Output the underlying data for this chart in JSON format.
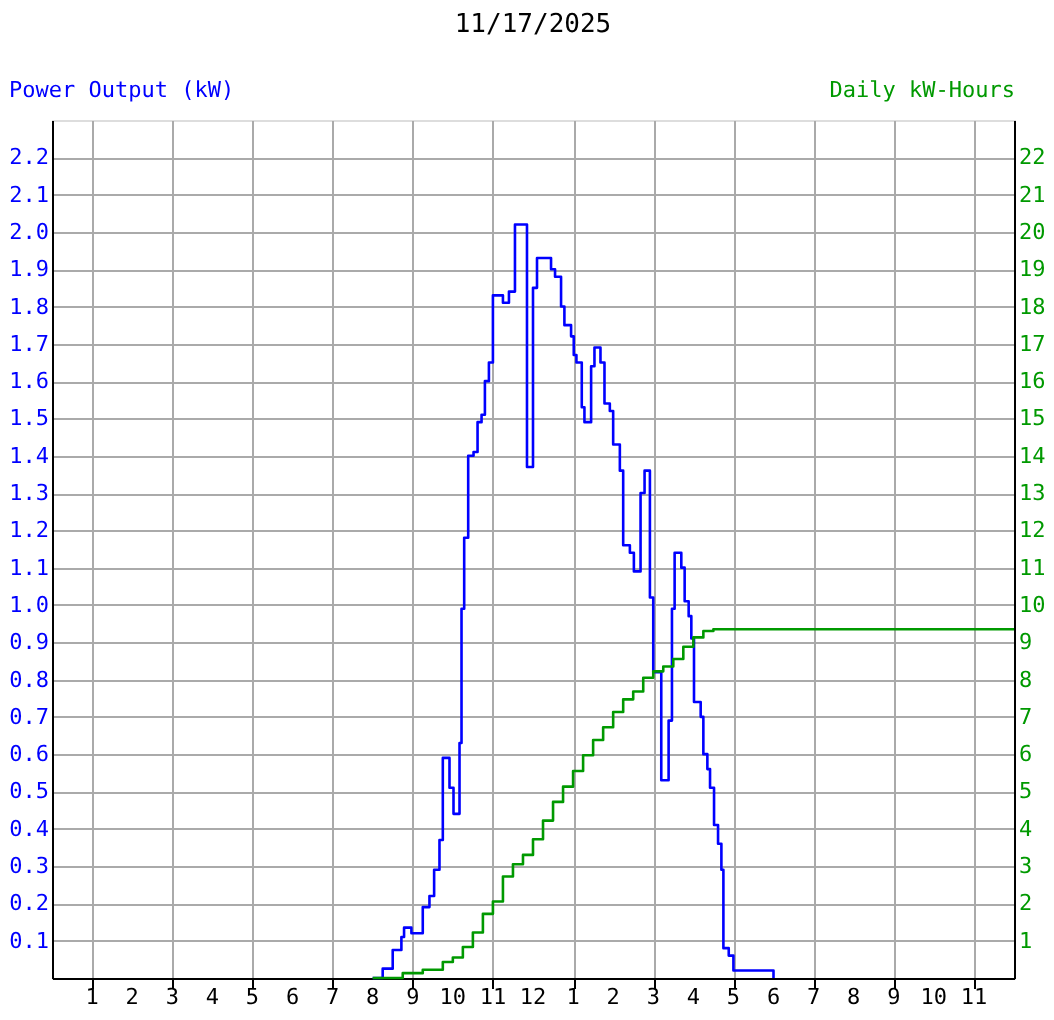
{
  "chart_data": {
    "type": "step",
    "title": "11/17/2025",
    "ylabel": "Power Output (kW)",
    "y2label": "Daily kW-Hours",
    "xlim": [
      "2025-11-17T00:00",
      "2025-11-18T00:00"
    ],
    "xticks": [
      {
        "value": "2025-11-17T01:00",
        "label": "1"
      },
      {
        "value": "2025-11-17T02:00",
        "label": "2"
      },
      {
        "value": "2025-11-17T03:00",
        "label": "3"
      },
      {
        "value": "2025-11-17T04:00",
        "label": "4"
      },
      {
        "value": "2025-11-17T05:00",
        "label": "5"
      },
      {
        "value": "2025-11-17T06:00",
        "label": "6"
      },
      {
        "value": "2025-11-17T07:00",
        "label": "7"
      },
      {
        "value": "2025-11-17T08:00",
        "label": "8"
      },
      {
        "value": "2025-11-17T09:00",
        "label": "9"
      },
      {
        "value": "2025-11-17T10:00",
        "label": "10"
      },
      {
        "value": "2025-11-17T11:00",
        "label": "11"
      },
      {
        "value": "2025-11-17T12:00",
        "label": "12"
      },
      {
        "value": "2025-11-17T13:00",
        "label": "1"
      },
      {
        "value": "2025-11-17T14:00",
        "label": "2"
      },
      {
        "value": "2025-11-17T15:00",
        "label": "3"
      },
      {
        "value": "2025-11-17T16:00",
        "label": "4"
      },
      {
        "value": "2025-11-17T17:00",
        "label": "5"
      },
      {
        "value": "2025-11-17T18:00",
        "label": "6"
      },
      {
        "value": "2025-11-17T19:00",
        "label": "7"
      },
      {
        "value": "2025-11-17T20:00",
        "label": "8"
      },
      {
        "value": "2025-11-17T21:00",
        "label": "9"
      },
      {
        "value": "2025-11-17T22:00",
        "label": "10"
      },
      {
        "value": "2025-11-17T23:00",
        "label": "11"
      }
    ],
    "ylim": [
      0,
      2.3
    ],
    "yticks": [
      0.1,
      0.2,
      0.3,
      0.4,
      0.5,
      0.6,
      0.7,
      0.8,
      0.9,
      {
        "value": 1.0,
        "label": "1.0"
      },
      1.1,
      1.2,
      1.3,
      1.4,
      1.5,
      1.6,
      1.7,
      1.8,
      1.9,
      {
        "value": 2.0,
        "label": "2.0"
      },
      2.1,
      2.2
    ],
    "y2lim": [
      0,
      23
    ],
    "y2ticks": [
      1,
      2,
      3,
      4,
      5,
      6,
      7,
      8,
      9,
      10,
      11,
      12,
      13,
      14,
      15,
      16,
      17,
      18,
      19,
      20,
      21,
      22
    ],
    "grid": true,
    "marker": "none",
    "line_style": "solid",
    "series": [
      {
        "color": "#0000ff",
        "x": [
          "2025-11-17T08:00",
          "2025-11-17T08:15",
          "2025-11-17T08:30",
          "2025-11-17T08:43",
          "2025-11-17T08:47",
          "2025-11-17T08:58",
          "2025-11-17T09:15",
          "2025-11-17T09:25",
          "2025-11-17T09:32",
          "2025-11-17T09:40",
          "2025-11-17T09:45",
          "2025-11-17T09:55",
          "2025-11-17T10:01",
          "2025-11-17T10:10",
          "2025-11-17T10:13",
          "2025-11-17T10:17",
          "2025-11-17T10:23",
          "2025-11-17T10:31",
          "2025-11-17T10:37",
          "2025-11-17T10:43",
          "2025-11-17T10:48",
          "2025-11-17T10:54",
          "2025-11-17T11:00",
          "2025-11-17T11:15",
          "2025-11-17T11:24",
          "2025-11-17T11:33",
          "2025-11-17T11:51",
          "2025-11-17T12:00",
          "2025-11-17T12:06",
          "2025-11-17T12:27",
          "2025-11-17T12:33",
          "2025-11-17T12:42",
          "2025-11-17T12:47",
          "2025-11-17T12:57",
          "2025-11-17T13:01",
          "2025-11-17T13:05",
          "2025-11-17T13:13",
          "2025-11-17T13:17",
          "2025-11-17T13:27",
          "2025-11-17T13:32",
          "2025-11-17T13:41",
          "2025-11-17T13:47",
          "2025-11-17T13:55",
          "2025-11-17T14:00",
          "2025-11-17T14:10",
          "2025-11-17T14:15",
          "2025-11-17T14:25",
          "2025-11-17T14:31",
          "2025-11-17T14:41",
          "2025-11-17T14:47",
          "2025-11-17T14:55",
          "2025-11-17T15:00",
          "2025-11-17T15:12",
          "2025-11-17T15:23",
          "2025-11-17T15:28",
          "2025-11-17T15:32",
          "2025-11-17T15:42",
          "2025-11-17T15:47",
          "2025-11-17T15:53",
          "2025-11-17T15:57",
          "2025-11-17T16:01",
          "2025-11-17T16:11",
          "2025-11-17T16:15",
          "2025-11-17T16:21",
          "2025-11-17T16:25",
          "2025-11-17T16:31",
          "2025-11-17T16:37",
          "2025-11-17T16:42",
          "2025-11-17T16:45",
          "2025-11-17T16:53",
          "2025-11-17T17:00",
          "2025-11-17T18:00"
        ],
        "values": [
          0,
          0.025,
          0.075,
          0.11,
          0.135,
          0.12,
          0.19,
          0.22,
          0.29,
          0.37,
          0.59,
          0.51,
          0.44,
          0.63,
          0.99,
          1.18,
          1.4,
          1.41,
          1.49,
          1.51,
          1.6,
          1.65,
          1.83,
          1.81,
          1.84,
          2.02,
          1.37,
          1.85,
          1.93,
          1.9,
          1.88,
          1.8,
          1.75,
          1.72,
          1.67,
          1.65,
          1.53,
          1.49,
          1.64,
          1.69,
          1.65,
          1.54,
          1.52,
          1.43,
          1.36,
          1.16,
          1.14,
          1.09,
          1.3,
          1.36,
          1.02,
          0.82,
          0.53,
          0.69,
          0.99,
          1.14,
          1.1,
          1.01,
          0.97,
          0.91,
          0.74,
          0.7,
          0.6,
          0.56,
          0.51,
          0.41,
          0.36,
          0.29,
          0.08,
          0.06,
          0.02,
          0
        ]
      },
      {
        "color": "#009900",
        "axis": "y2",
        "x": [
          "2025-11-17T08:00",
          "2025-11-17T08:45",
          "2025-11-17T09:15",
          "2025-11-17T09:45",
          "2025-11-17T10:00",
          "2025-11-17T10:15",
          "2025-11-17T10:30",
          "2025-11-17T10:45",
          "2025-11-17T11:00",
          "2025-11-17T11:15",
          "2025-11-17T11:30",
          "2025-11-17T11:45",
          "2025-11-17T12:00",
          "2025-11-17T12:15",
          "2025-11-17T12:30",
          "2025-11-17T12:45",
          "2025-11-17T13:00",
          "2025-11-17T13:15",
          "2025-11-17T13:30",
          "2025-11-17T13:45",
          "2025-11-17T14:00",
          "2025-11-17T14:15",
          "2025-11-17T14:30",
          "2025-11-17T14:45",
          "2025-11-17T15:00",
          "2025-11-17T15:15",
          "2025-11-17T15:30",
          "2025-11-17T15:45",
          "2025-11-17T16:00",
          "2025-11-17T16:15",
          "2025-11-17T16:30",
          "2025-11-18T00:00"
        ],
        "values": [
          0,
          0.13,
          0.22,
          0.43,
          0.55,
          0.83,
          1.22,
          1.72,
          2.05,
          2.72,
          3.05,
          3.3,
          3.72,
          4.22,
          4.72,
          5.13,
          5.55,
          5.97,
          6.38,
          6.72,
          7.13,
          7.47,
          7.68,
          8.05,
          8.22,
          8.35,
          8.55,
          8.88,
          9.13,
          9.3,
          9.35,
          9.35
        ]
      }
    ]
  }
}
